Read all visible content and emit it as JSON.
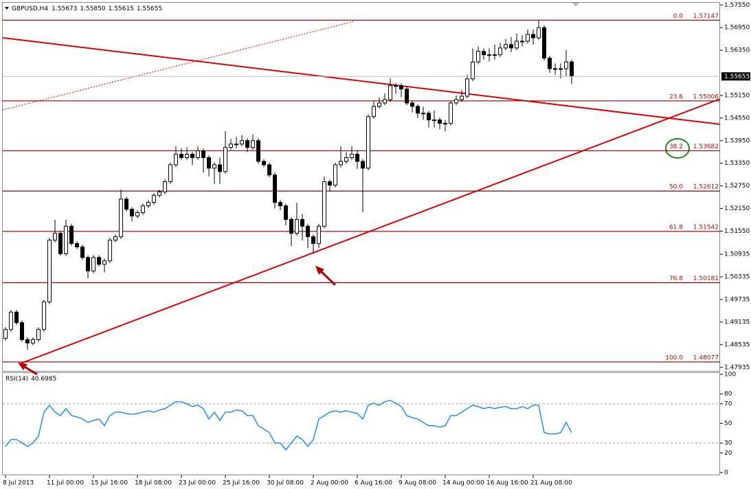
{
  "header": {
    "symbol": "GBPUSD,H4",
    "ohlc": [
      {
        "value": 1.55673,
        "label": "1.55673"
      },
      {
        "value": 1.5585,
        "label": "1.55850"
      },
      {
        "value": 1.55615,
        "label": "1.55615"
      },
      {
        "value": 1.55655,
        "label": "1.55655"
      }
    ]
  },
  "chart_data": [
    {
      "type": "candlestick",
      "categories": [
        "8 Jul 2013",
        null,
        null,
        null,
        null,
        null,
        null,
        null,
        "11 Jul 00:00",
        null,
        null,
        null,
        null,
        null,
        null,
        null,
        "15 Jul 16:00",
        null,
        null,
        null,
        null,
        null,
        null,
        null,
        "18 Jul 08:00",
        null,
        null,
        null,
        null,
        null,
        null,
        null,
        "23 Jul 00:00",
        null,
        null,
        null,
        null,
        null,
        null,
        null,
        "25 Jul 16:00",
        null,
        null,
        null,
        null,
        null,
        null,
        null,
        "30 Jul 08:00",
        null,
        null,
        null,
        null,
        null,
        null,
        null,
        "2 Aug 00:00",
        null,
        null,
        null,
        null,
        null,
        null,
        null,
        "6 Aug 16:00",
        null,
        null,
        null,
        null,
        null,
        null,
        null,
        "9 Aug 08:00",
        null,
        null,
        null,
        null,
        null,
        null,
        null,
        "14 Aug 00:00",
        null,
        null,
        null,
        null,
        null,
        null,
        null,
        "16 Aug 16:00",
        null,
        null,
        null,
        null,
        null,
        null,
        null,
        "21 Aug 08:00",
        null,
        null,
        null,
        null,
        null,
        null,
        null
      ],
      "open": [
        1.487,
        1.4894,
        1.494,
        1.4912,
        1.4867,
        1.4858,
        1.4867,
        1.4894,
        1.4967,
        1.5131,
        1.5149,
        1.5095,
        1.5168,
        1.5122,
        1.5113,
        1.5085,
        1.5049,
        1.5085,
        1.5067,
        1.5076,
        1.5131,
        1.514,
        1.524,
        1.5213,
        1.5195,
        1.5204,
        1.5222,
        1.5231,
        1.525,
        1.5259,
        1.5286,
        1.5331,
        1.5359,
        1.535,
        1.5359,
        1.535,
        1.5368,
        1.535,
        1.5322,
        1.5331,
        1.5313,
        1.5377,
        1.5386,
        1.5386,
        1.5395,
        1.5377,
        1.5395,
        1.534,
        1.5331,
        1.5304,
        1.5231,
        1.5222,
        1.5186,
        1.5149,
        1.5186,
        1.5168,
        1.514,
        1.5122,
        1.5168,
        1.5286,
        1.5277,
        1.5331,
        1.534,
        1.535,
        1.5359,
        1.534,
        1.5322,
        1.5459,
        1.5486,
        1.5495,
        1.5504,
        1.5541,
        1.5541,
        1.5532,
        1.5495,
        1.5486,
        1.5468,
        1.5468,
        1.545,
        1.545,
        1.5441,
        1.5441,
        1.5495,
        1.5504,
        1.5513,
        1.5559,
        1.5604,
        1.5632,
        1.5623,
        1.5623,
        1.5623,
        1.5641,
        1.565,
        1.5641,
        1.5659,
        1.5659,
        1.5677,
        1.5668,
        1.5695,
        1.5614,
        1.5586,
        1.5586,
        1.5586,
        1.5604
      ],
      "high": [
        1.49,
        1.4946,
        1.4946,
        1.4918,
        1.4873,
        1.4873,
        1.49,
        1.4973,
        1.5137,
        1.5185,
        1.5155,
        1.5185,
        1.5174,
        1.5128,
        1.5119,
        1.5091,
        1.5091,
        1.5091,
        1.5082,
        1.5137,
        1.5146,
        1.5265,
        1.5246,
        1.5219,
        1.521,
        1.5228,
        1.5237,
        1.5256,
        1.5265,
        1.5292,
        1.5337,
        1.538,
        1.5375,
        1.5378,
        1.5365,
        1.538,
        1.5374,
        1.5356,
        1.5337,
        1.535,
        1.542,
        1.54,
        1.5405,
        1.541,
        1.5401,
        1.5412,
        1.5401,
        1.5346,
        1.5337,
        1.531,
        1.5237,
        1.5228,
        1.5192,
        1.523,
        1.52,
        1.5174,
        1.5146,
        1.5174,
        1.53,
        1.5292,
        1.5337,
        1.538,
        1.5365,
        1.538,
        1.537,
        1.5346,
        1.5465,
        1.55,
        1.551,
        1.552,
        1.556,
        1.5547,
        1.5547,
        1.5538,
        1.5501,
        1.5492,
        1.5485,
        1.5474,
        1.5475,
        1.5456,
        1.545,
        1.5501,
        1.5515,
        1.553,
        1.557,
        1.564,
        1.5645,
        1.564,
        1.564,
        1.565,
        1.5655,
        1.5665,
        1.567,
        1.568,
        1.5675,
        1.569,
        1.569,
        1.5714,
        1.5701,
        1.562,
        1.56,
        1.56,
        1.5635,
        1.561
      ],
      "low": [
        1.4864,
        1.4888,
        1.4906,
        1.4861,
        1.484,
        1.4852,
        1.4861,
        1.4888,
        1.4961,
        1.5125,
        1.5089,
        1.5089,
        1.5116,
        1.5107,
        1.5079,
        1.503,
        1.5043,
        1.5061,
        1.5045,
        1.507,
        1.5125,
        1.5134,
        1.5207,
        1.518,
        1.5189,
        1.5198,
        1.5216,
        1.5225,
        1.5244,
        1.5253,
        1.528,
        1.5325,
        1.5344,
        1.5344,
        1.533,
        1.5344,
        1.531,
        1.53,
        1.528,
        1.528,
        1.5307,
        1.5371,
        1.5375,
        1.538,
        1.5365,
        1.5371,
        1.5334,
        1.5325,
        1.5298,
        1.5215,
        1.521,
        1.517,
        1.5115,
        1.5143,
        1.513,
        1.511,
        1.5095,
        1.511,
        1.5162,
        1.526,
        1.5271,
        1.5325,
        1.5334,
        1.5344,
        1.532,
        1.5205,
        1.5316,
        1.5453,
        1.548,
        1.5489,
        1.5498,
        1.552,
        1.551,
        1.5489,
        1.547,
        1.5455,
        1.545,
        1.543,
        1.543,
        1.5425,
        1.542,
        1.5435,
        1.5489,
        1.5498,
        1.5507,
        1.5553,
        1.5598,
        1.561,
        1.5605,
        1.561,
        1.5617,
        1.5635,
        1.563,
        1.5635,
        1.5645,
        1.5653,
        1.565,
        1.5662,
        1.5608,
        1.5575,
        1.557,
        1.556,
        1.5565,
        1.5545
      ],
      "close": [
        1.4894,
        1.494,
        1.4912,
        1.4867,
        1.4858,
        1.4867,
        1.4894,
        1.4967,
        1.5131,
        1.5149,
        1.5095,
        1.5168,
        1.5122,
        1.5113,
        1.5085,
        1.5049,
        1.5085,
        1.5067,
        1.5076,
        1.5131,
        1.514,
        1.524,
        1.5213,
        1.5195,
        1.5204,
        1.5222,
        1.5231,
        1.525,
        1.5259,
        1.5286,
        1.5331,
        1.5359,
        1.535,
        1.5359,
        1.535,
        1.5368,
        1.535,
        1.5322,
        1.5331,
        1.5313,
        1.5377,
        1.5386,
        1.5386,
        1.5395,
        1.5377,
        1.5395,
        1.534,
        1.5331,
        1.5304,
        1.5231,
        1.5222,
        1.5186,
        1.5149,
        1.5186,
        1.5168,
        1.514,
        1.5122,
        1.5168,
        1.5286,
        1.5277,
        1.5331,
        1.534,
        1.535,
        1.5359,
        1.534,
        1.5322,
        1.5459,
        1.5486,
        1.5495,
        1.5504,
        1.5541,
        1.5541,
        1.5532,
        1.5495,
        1.5486,
        1.5468,
        1.5468,
        1.545,
        1.545,
        1.5441,
        1.5441,
        1.5495,
        1.5504,
        1.5513,
        1.5559,
        1.5604,
        1.5632,
        1.5623,
        1.5623,
        1.5623,
        1.5641,
        1.565,
        1.5641,
        1.5659,
        1.5659,
        1.5677,
        1.5668,
        1.5695,
        1.5614,
        1.5586,
        1.5586,
        1.5586,
        1.5604,
        1.5566
      ],
      "ylim": [
        1.4784,
        1.5761
      ],
      "yticks": [
        {
          "value": 1.5755,
          "label": "1.57550"
        },
        {
          "value": 1.5695,
          "label": "1.56950"
        },
        {
          "value": 1.5635,
          "label": "1.56350"
        },
        {
          "value": 1.5515,
          "label": "1.55150"
        },
        {
          "value": 1.5455,
          "label": "1.54550"
        },
        {
          "value": 1.5395,
          "label": "1.53950"
        },
        {
          "value": 1.5335,
          "label": "1.53350"
        },
        {
          "value": 1.5275,
          "label": "1.52750"
        },
        {
          "value": 1.5215,
          "label": "1.52150"
        },
        {
          "value": 1.5155,
          "label": "1.51550"
        },
        {
          "value": 1.50935,
          "label": "1.50935"
        },
        {
          "value": 1.50335,
          "label": "1.50335"
        },
        {
          "value": 1.49735,
          "label": "1.49735"
        },
        {
          "value": 1.49135,
          "label": "1.49135"
        },
        {
          "value": 1.48535,
          "label": "1.48535"
        },
        {
          "value": 1.47935,
          "label": "1.47935"
        }
      ],
      "current_price": {
        "value": 1.55655,
        "label": "1.55655"
      },
      "fibonacci": {
        "levels": [
          {
            "value": 0,
            "label": "0.0"
          },
          23.6,
          38.2,
          {
            "value": 50,
            "label": "50.0"
          },
          61.8,
          76.8,
          {
            "value": 100,
            "label": "100.0"
          }
        ],
        "prices": [
          1.57147,
          1.55006,
          1.53682,
          1.52612,
          1.51542,
          1.50181,
          1.48077
        ],
        "color": "#a01010"
      }
    },
    {
      "type": "line",
      "title": "RSI(14)",
      "last_value": 40.6985,
      "color": "#1e8fff",
      "values": [
        26.6,
        33.6,
        33.6,
        30.1,
        26.6,
        30.1,
        37.1,
        61.5,
        68.5,
        61.5,
        58.0,
        65.0,
        58.0,
        56.6,
        54.5,
        51.0,
        53.1,
        54.5,
        47.6,
        58.0,
        61.5,
        61.5,
        60.1,
        59.4,
        60.1,
        61.5,
        62.9,
        61.5,
        63.6,
        65.0,
        68.5,
        72.0,
        72.0,
        69.9,
        67.1,
        68.5,
        65.0,
        54.5,
        61.5,
        53.1,
        61.5,
        61.5,
        63.6,
        62.9,
        58.0,
        58.0,
        47.6,
        44.1,
        40.6,
        30.1,
        30.1,
        23.1,
        30.1,
        37.1,
        33.6,
        26.6,
        33.6,
        54.5,
        58.0,
        61.5,
        62.9,
        61.5,
        62.9,
        61.5,
        60.1,
        54.5,
        68.5,
        70.6,
        68.5,
        72.0,
        73.4,
        70.6,
        67.1,
        58.0,
        55.9,
        54.5,
        51.0,
        47.6,
        47.6,
        46.2,
        47.6,
        58.0,
        58.0,
        61.5,
        65.0,
        68.5,
        67.1,
        65.0,
        66.4,
        65.0,
        66.4,
        67.1,
        65.0,
        65.0,
        67.1,
        65.0,
        68.5,
        68.5,
        40.6,
        39.2,
        39.2,
        40.6,
        51.0,
        40.7
      ],
      "ylim": [
        0,
        100
      ],
      "yticks": [
        100,
        80,
        70,
        50,
        30,
        20,
        0
      ],
      "levels": [
        70,
        30
      ]
    }
  ]
}
